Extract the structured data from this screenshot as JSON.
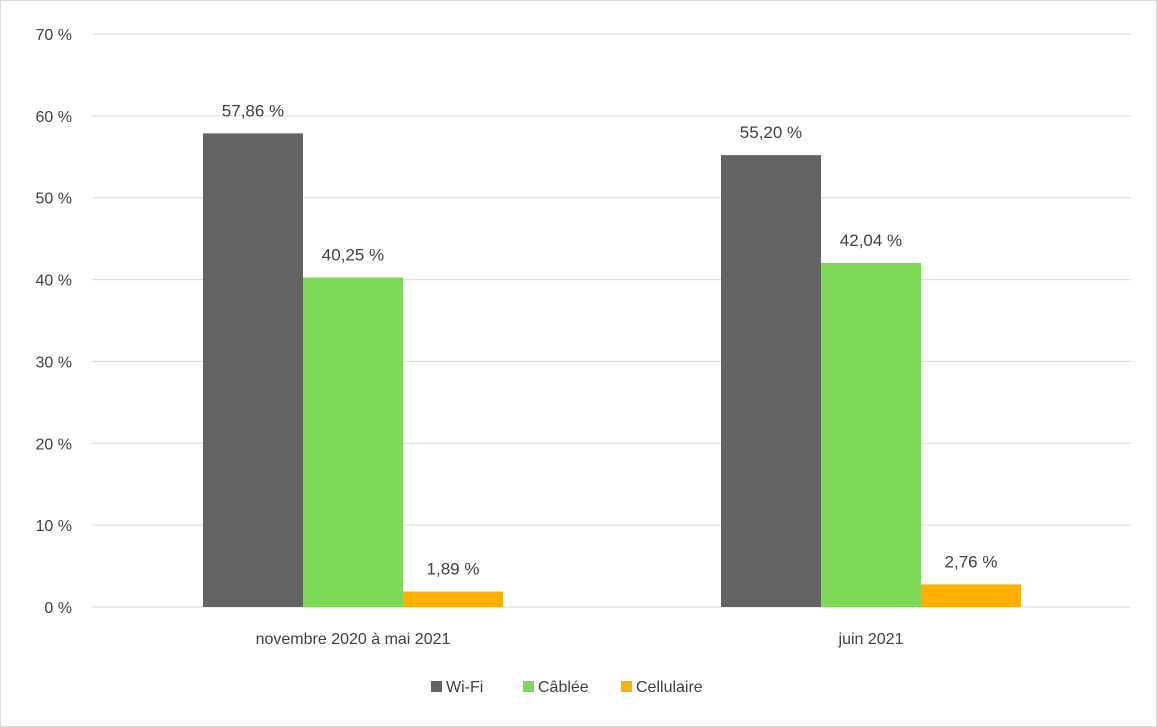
{
  "chart_data": {
    "type": "bar",
    "categories": [
      "novembre 2020 à mai 2021",
      "juin 2021"
    ],
    "series": [
      {
        "name": "Wi-Fi",
        "values": [
          57.86,
          55.2
        ],
        "labels": [
          "57,86 %",
          "55,20 %"
        ],
        "color": "#636363"
      },
      {
        "name": "Câblée",
        "values": [
          40.25,
          42.04
        ],
        "labels": [
          "40,25 %",
          "42,04 %"
        ],
        "color": "#7ed957"
      },
      {
        "name": "Cellulaire",
        "values": [
          1.89,
          2.76
        ],
        "labels": [
          "1,89 %",
          "2,76 %"
        ],
        "color": "#ffb000"
      }
    ],
    "ylim": [
      0,
      70
    ],
    "yticks": [
      0,
      10,
      20,
      30,
      40,
      50,
      60,
      70
    ],
    "ytick_labels": [
      "0 %",
      "10 %",
      "20 %",
      "30 %",
      "40 %",
      "50 %",
      "60 %",
      "70 %"
    ],
    "grid": true,
    "legend": "bottom",
    "title": "",
    "xlabel": "",
    "ylabel": "",
    "colors": {
      "grid": "#d9d9d9",
      "text": "#404040"
    }
  }
}
